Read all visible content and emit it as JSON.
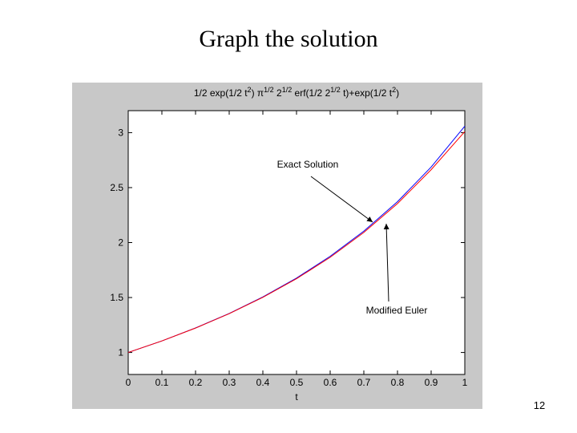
{
  "slide": {
    "title": "Graph the solution",
    "page_number": 12
  },
  "chart_data": {
    "type": "line",
    "title": [
      {
        "text": "1/2 exp(1/2 t"
      },
      {
        "text": "2",
        "sup": true
      },
      {
        "text": ") π"
      },
      {
        "text": "1/2",
        "sup": true
      },
      {
        "text": " 2"
      },
      {
        "text": "1/2",
        "sup": true
      },
      {
        "text": " erf(1/2 2"
      },
      {
        "text": "1/2",
        "sup": true
      },
      {
        "text": " t)+exp(1/2 t"
      },
      {
        "text": "2",
        "sup": true
      },
      {
        "text": ")"
      }
    ],
    "x_label": "t",
    "x": [
      0,
      0.1,
      0.2,
      0.3,
      0.4,
      0.5,
      0.6,
      0.7,
      0.8,
      0.9,
      1
    ],
    "series": [
      {
        "name": "Exact Solution",
        "color": "#0000ff",
        "values": [
          1,
          1.105,
          1.223,
          1.355,
          1.505,
          1.677,
          1.875,
          2.104,
          2.372,
          2.687,
          3.059
        ]
      },
      {
        "name": "Modified Euler",
        "color": "#ff0000",
        "values": [
          1,
          1.105,
          1.222,
          1.353,
          1.502,
          1.671,
          1.866,
          2.092,
          2.355,
          2.663,
          3.01
        ]
      }
    ],
    "xlim": [
      0,
      1
    ],
    "xticks": [
      0,
      0.1,
      0.2,
      0.3,
      0.4,
      0.5,
      0.6,
      0.7,
      0.8,
      0.9,
      1
    ],
    "ylim": [
      0.8,
      3.2
    ],
    "yticks": [
      1,
      1.5,
      2,
      2.5,
      3
    ],
    "grid": false
  }
}
